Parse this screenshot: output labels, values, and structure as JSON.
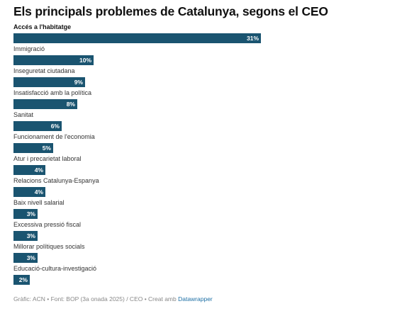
{
  "chart_data": {
    "type": "bar",
    "orientation": "horizontal",
    "title": "Els principals problemes de Catalunya, segons el CEO",
    "categories": [
      "Accés a l'habitatge",
      "Immigració",
      "Inseguretat ciutadana",
      "Insatisfacció amb la política",
      "Sanitat",
      "Funcionament de l'economia",
      "Atur i precarietat laboral",
      "Relacions Catalunya-Espanya",
      "Baix nivell salarial",
      "Excessiva pressió fiscal",
      "Millorar polítiques socials",
      "Educació-cultura-investigació"
    ],
    "values": [
      31,
      10,
      9,
      8,
      6,
      5,
      4,
      4,
      3,
      3,
      3,
      2
    ],
    "value_labels": [
      "31%",
      "10%",
      "9%",
      "8%",
      "6%",
      "5%",
      "4%",
      "4%",
      "3%",
      "3%",
      "3%",
      "2%"
    ],
    "xlim": [
      0,
      31
    ],
    "bar_color": "#1a5470",
    "grid": false,
    "legend": "none"
  },
  "footer": {
    "source_text": "Gràfic: ACN • Font: BOP (3a onada 2025) / CEO • Creat amb ",
    "tool_link": "Datawrapper",
    "link_color": "#1d6fa5"
  }
}
